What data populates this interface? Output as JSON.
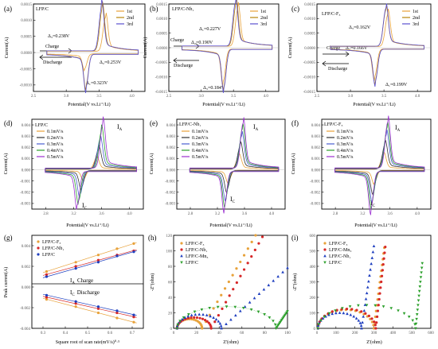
{
  "panels": {
    "a": {
      "letter": "(a)",
      "tag": "LFP/C",
      "legend": [
        "1st",
        "2nd",
        "3rd"
      ],
      "xlabel": "Potential(V vs.Li⁺/Li)",
      "ylabel": "Current(A)",
      "ann": [
        "Δ₃=0.238V",
        "Δ₂=0.253V",
        "Δ₁=0.323V"
      ],
      "charge": "Charge",
      "discharge": "Discharge"
    },
    "b": {
      "letter": "(b)",
      "tag": "LFP/C-Nb₁",
      "legend": [
        "1st",
        "2nd",
        "3rd"
      ],
      "xlabel": "Potential(V vs.Li⁺/Li)",
      "ylabel": "Current(A)",
      "ann": [
        "Δ₁=0.227V",
        "Δ₂=0.190V",
        "Δ₃=0.184V"
      ],
      "charge": "Charge",
      "discharge": "Discharge"
    },
    "c": {
      "letter": "(c)",
      "tag": "LFP/C-F₃",
      "legend": [
        "1st",
        "2nd",
        "3rd"
      ],
      "xlabel": "Potential(V vs.Li⁺/Li)",
      "ylabel": "Current(A)",
      "ann": [
        "Δ₃=0.162V",
        "Δ₂=0.166V",
        "Δ₁=0.199V"
      ],
      "charge": "Charge",
      "discharge": "Discharge"
    },
    "d": {
      "letter": "(d)",
      "tag": "LFP/C",
      "legend": [
        "0.1mV/s",
        "0.2mV/s",
        "0.3mV/s",
        "0.4mV/s",
        "0.5mV/s"
      ],
      "xlabel": "Potential(V vs.Li⁺/Li)",
      "ylabel": "Current(A)",
      "ia": "I",
      "ia_sub": "A",
      "ic": "I",
      "ic_sub": "C"
    },
    "e": {
      "letter": "(e)",
      "tag": "LFP/C-Nb₁",
      "legend": [
        "0.1mV/s",
        "0.2mV/s",
        "0.3mV/s",
        "0.4mV/s",
        "0.5mV/s"
      ],
      "xlabel": "Potential(V vs.Li⁺/Li)",
      "ylabel": "Current(A)",
      "ia": "I",
      "ia_sub": "A",
      "ic": "I",
      "ic_sub": "C"
    },
    "f": {
      "letter": "(f)",
      "tag": "LFP/C-F₃",
      "legend": [
        "0.1mV/s",
        "0.2mV/s",
        "0.3mV/s",
        "0.4mV/s",
        "0.5mV/s"
      ],
      "xlabel": "Potential(V vs.Li⁺/Li)",
      "ylabel": "Current(A)",
      "ia": "I",
      "ia_sub": "A",
      "ic": "I",
      "ic_sub": "C"
    },
    "g": {
      "letter": "(g)",
      "legend": [
        "LFP/C-F₃",
        "LFP/C-Nb₁",
        "LFP/C"
      ],
      "xlabel": "Square root of scan rate(mV/s)⁰·⁵",
      "ylabel": "Peak current(A)",
      "ia_label": "I",
      "ia_sub": "A",
      "charge": "Charge",
      "ic_label": "I",
      "ic_sub": "C",
      "discharge": "Discharge"
    },
    "h": {
      "letter": "(h)",
      "legend": [
        "LFP/C-F₃",
        "LFP/C-Nb₁",
        "LFP/C-Mn₃",
        "LFP/C"
      ],
      "xlabel": "Z'(ohm)",
      "ylabel": "-Z''(ohm)"
    },
    "i": {
      "letter": "(i)",
      "legend": [
        "LFP/C-F₃",
        "LFP/C-Mn₃",
        "LFP/C-Nb₁",
        "LFP/C"
      ],
      "xlabel": "Z'(ohm)",
      "ylabel": "-Z''(ohm)"
    }
  },
  "chart_data": [
    {
      "panel": "a",
      "type": "line",
      "xlim": [
        2.5,
        4.2
      ],
      "ylim": [
        -0.0012,
        0.0015
      ],
      "xticks": [
        "2.5",
        "3.0",
        "3.5",
        "4.0"
      ],
      "yticks": [
        "0.0015",
        "0.0010",
        "0.0005",
        "0.0000",
        "-0.0005",
        "-0.0010"
      ],
      "series": [
        {
          "name": "1st",
          "color": "#e8a23a",
          "anodic_peak": [
            3.6,
            0.00105
          ],
          "cathodic_peak": [
            3.28,
            -0.00045
          ]
        },
        {
          "name": "2nd",
          "color": "#b8860b",
          "anodic_peak": [
            3.55,
            0.0013
          ],
          "cathodic_peak": [
            3.3,
            -0.00095
          ]
        },
        {
          "name": "3rd",
          "color": "#5a4fcf",
          "anodic_peak": [
            3.54,
            0.00135
          ],
          "cathodic_peak": [
            3.3,
            -0.00102
          ]
        }
      ]
    },
    {
      "panel": "b",
      "type": "line",
      "xlim": [
        2.5,
        4.2
      ],
      "ylim": [
        -0.0015,
        0.0015
      ],
      "xticks": [
        "2.5",
        "3.0",
        "3.5",
        "4.0"
      ],
      "yticks": [
        "0.0015",
        "0.0010",
        "0.0005",
        "0.0000",
        "-0.0005",
        "-0.0010",
        "-0.0015"
      ],
      "series": [
        {
          "name": "1st",
          "color": "#e8a23a",
          "anodic_peak": [
            3.57,
            0.0013
          ],
          "cathodic_peak": [
            3.34,
            -0.0011
          ]
        },
        {
          "name": "2nd",
          "color": "#b8860b",
          "anodic_peak": [
            3.54,
            0.00142
          ],
          "cathodic_peak": [
            3.35,
            -0.00125
          ]
        },
        {
          "name": "3rd",
          "color": "#5a4fcf",
          "anodic_peak": [
            3.53,
            0.00148
          ],
          "cathodic_peak": [
            3.35,
            -0.0013
          ]
        }
      ]
    },
    {
      "panel": "c",
      "type": "line",
      "xlim": [
        2.5,
        4.2
      ],
      "ylim": [
        -0.0015,
        0.0015
      ],
      "xticks": [
        "2.5",
        "3.0",
        "3.5",
        "4.0"
      ],
      "yticks": [
        "0.0015",
        "0.0010",
        "0.0005",
        "0.0000",
        "-0.0005",
        "-0.0010",
        "-0.0015"
      ],
      "series": [
        {
          "name": "1st",
          "color": "#e8a23a",
          "anodic_peak": [
            3.56,
            0.0011
          ],
          "cathodic_peak": [
            3.36,
            -0.00095
          ]
        },
        {
          "name": "2nd",
          "color": "#b8860b",
          "anodic_peak": [
            3.53,
            0.00125
          ],
          "cathodic_peak": [
            3.37,
            -0.00105
          ]
        },
        {
          "name": "3rd",
          "color": "#5a4fcf",
          "anodic_peak": [
            3.53,
            0.0013
          ],
          "cathodic_peak": [
            3.37,
            -0.0011
          ]
        }
      ]
    },
    {
      "panel": "d",
      "type": "line",
      "xlim": [
        2.6,
        4.2
      ],
      "ylim": [
        -0.0035,
        0.0045
      ],
      "xticks": [
        "2.8",
        "3.2",
        "3.6",
        "4.0"
      ],
      "yticks": [
        "0.004",
        "0.003",
        "0.002",
        "0.001",
        "0.000",
        "-0.001",
        "-0.002",
        "-0.003"
      ],
      "series": [
        {
          "name": "0.1mV/s",
          "color": "#e8a23a",
          "anodic_peak": [
            3.53,
            0.001
          ],
          "cathodic_peak": [
            3.34,
            -0.0008
          ]
        },
        {
          "name": "0.2mV/s",
          "color": "#333333",
          "anodic_peak": [
            3.56,
            0.0018
          ],
          "cathodic_peak": [
            3.31,
            -0.0015
          ]
        },
        {
          "name": "0.3mV/s",
          "color": "#4a5fd0",
          "anodic_peak": [
            3.58,
            0.0026
          ],
          "cathodic_peak": [
            3.29,
            -0.0021
          ]
        },
        {
          "name": "0.4mV/s",
          "color": "#2ca02c",
          "anodic_peak": [
            3.6,
            0.0033
          ],
          "cathodic_peak": [
            3.27,
            -0.0026
          ]
        },
        {
          "name": "0.5mV/s",
          "color": "#9b30d0",
          "anodic_peak": [
            3.62,
            0.0039
          ],
          "cathodic_peak": [
            3.25,
            -0.003
          ]
        }
      ]
    },
    {
      "panel": "e",
      "type": "line",
      "xlim": [
        2.6,
        4.2
      ],
      "ylim": [
        -0.0035,
        0.0045
      ],
      "xticks": [
        "2.8",
        "3.2",
        "3.6",
        "4.0"
      ],
      "yticks": [
        "0.004",
        "0.003",
        "0.002",
        "0.001",
        "0.000",
        "-0.001",
        "-0.002",
        "-0.003"
      ],
      "series": [
        {
          "name": "0.1mV/s",
          "color": "#e8a23a",
          "anodic_peak": [
            3.52,
            0.0012
          ],
          "cathodic_peak": [
            3.36,
            -0.001
          ]
        },
        {
          "name": "0.2mV/s",
          "color": "#333333",
          "anodic_peak": [
            3.54,
            0.0021
          ],
          "cathodic_peak": [
            3.34,
            -0.0017
          ]
        },
        {
          "name": "0.3mV/s",
          "color": "#4a5fd0",
          "anodic_peak": [
            3.56,
            0.0029
          ],
          "cathodic_peak": [
            3.32,
            -0.0023
          ]
        },
        {
          "name": "0.4mV/s",
          "color": "#2ca02c",
          "anodic_peak": [
            3.57,
            0.0035
          ],
          "cathodic_peak": [
            3.31,
            -0.0028
          ]
        },
        {
          "name": "0.5mV/s",
          "color": "#9b30d0",
          "anodic_peak": [
            3.58,
            0.004
          ],
          "cathodic_peak": [
            3.3,
            -0.0032
          ]
        }
      ]
    },
    {
      "panel": "f",
      "type": "line",
      "xlim": [
        2.6,
        4.2
      ],
      "ylim": [
        -0.0035,
        0.0045
      ],
      "xticks": [
        "2.8",
        "3.2",
        "3.6",
        "4.0"
      ],
      "yticks": [
        "0.004",
        "0.003",
        "0.002",
        "0.001",
        "0.000",
        "-0.001",
        "-0.002",
        "-0.003"
      ],
      "series": [
        {
          "name": "0.1mV/s",
          "color": "#e8a23a",
          "anodic_peak": [
            3.51,
            0.0013
          ],
          "cathodic_peak": [
            3.37,
            -0.0011
          ]
        },
        {
          "name": "0.2mV/s",
          "color": "#333333",
          "anodic_peak": [
            3.53,
            0.0022
          ],
          "cathodic_peak": [
            3.35,
            -0.0018
          ]
        },
        {
          "name": "0.3mV/s",
          "color": "#4a5fd0",
          "anodic_peak": [
            3.55,
            0.003
          ],
          "cathodic_peak": [
            3.34,
            -0.0024
          ]
        },
        {
          "name": "0.4mV/s",
          "color": "#2ca02c",
          "anodic_peak": [
            3.56,
            0.0036
          ],
          "cathodic_peak": [
            3.33,
            -0.0029
          ]
        },
        {
          "name": "0.5mV/s",
          "color": "#9b30d0",
          "anodic_peak": [
            3.57,
            0.0041
          ],
          "cathodic_peak": [
            3.32,
            -0.0033
          ]
        }
      ]
    },
    {
      "panel": "g",
      "type": "scatter",
      "xlim": [
        0.25,
        0.75
      ],
      "ylim": [
        -0.004,
        0.005
      ],
      "xticks": [
        "0.3",
        "0.4",
        "0.5",
        "0.6",
        "0.7"
      ],
      "yticks": [
        "0.004",
        "0.002",
        "0.000",
        "-0.002",
        "-0.004"
      ],
      "series": [
        {
          "name": "LFP/C-F₃",
          "color": "#e8a23a",
          "marker": "circle",
          "x": [
            0.316,
            0.447,
            0.548,
            0.632,
            0.707
          ],
          "y_charge": [
            0.0015,
            0.0024,
            0.0031,
            0.0037,
            0.0042
          ],
          "y_discharge": [
            -0.0012,
            -0.0019,
            -0.0025,
            -0.003,
            -0.0034
          ]
        },
        {
          "name": "LFP/C-Nb₁",
          "color": "#d62728",
          "marker": "circle",
          "x": [
            0.316,
            0.447,
            0.548,
            0.632,
            0.707
          ],
          "y_charge": [
            0.0012,
            0.002,
            0.0026,
            0.0031,
            0.0035
          ],
          "y_discharge": [
            -0.001,
            -0.0016,
            -0.0021,
            -0.0025,
            -0.0029
          ]
        },
        {
          "name": "LFP/C",
          "color": "#1f3fbf",
          "marker": "circle",
          "x": [
            0.316,
            0.447,
            0.548,
            0.632,
            0.707
          ],
          "y_charge": [
            0.001,
            0.0018,
            0.0024,
            0.003,
            0.0034
          ],
          "y_discharge": [
            -0.0008,
            -0.0014,
            -0.0019,
            -0.0023,
            -0.0027
          ]
        }
      ]
    },
    {
      "panel": "h",
      "type": "scatter",
      "xlim": [
        0,
        100
      ],
      "ylim": [
        0,
        120
      ],
      "xticks": [
        "0",
        "20",
        "40",
        "60",
        "80",
        "100"
      ],
      "yticks": [
        "0",
        "20",
        "40",
        "60",
        "80",
        "100",
        "120"
      ],
      "series": [
        {
          "name": "LFP/C-F₃",
          "color": "#e8a23a",
          "marker": "circle",
          "semicircle": [
            3,
            25,
            12
          ],
          "tail_end": [
            72,
            120
          ]
        },
        {
          "name": "LFP/C-Nb₁",
          "color": "#d62728",
          "marker": "circle",
          "semicircle": [
            3,
            33,
            14
          ],
          "tail_end": [
            78,
            118
          ]
        },
        {
          "name": "LFP/C-Mn₃",
          "color": "#1f3fbf",
          "marker": "triangle",
          "semicircle": [
            3,
            42,
            18
          ],
          "tail_end": [
            100,
            78
          ]
        },
        {
          "name": "LFP/C",
          "color": "#2ca02c",
          "marker": "triangle-down",
          "semicircle": [
            3,
            90,
            28
          ],
          "tail_end": [
            100,
            22
          ]
        }
      ]
    },
    {
      "panel": "i",
      "type": "scatter",
      "xlim": [
        0,
        600
      ],
      "ylim": [
        0,
        600
      ],
      "xticks": [
        "0",
        "100",
        "200",
        "300",
        "400",
        "500",
        "600"
      ],
      "yticks": [
        "0",
        "100",
        "200",
        "300",
        "400",
        "500",
        "600"
      ],
      "series": [
        {
          "name": "LFP/C-F₃",
          "color": "#e8a23a",
          "marker": "circle",
          "semicircle": [
            5,
            300,
            120
          ],
          "tail_end": [
            355,
            520
          ]
        },
        {
          "name": "LFP/C-Mn₃",
          "color": "#d62728",
          "marker": "circle",
          "semicircle": [
            5,
            310,
            125
          ],
          "tail_end": [
            360,
            525
          ]
        },
        {
          "name": "LFP/C-Nb₁",
          "color": "#1f3fbf",
          "marker": "triangle",
          "semicircle": [
            5,
            235,
            100
          ],
          "tail_end": [
            300,
            530
          ]
        },
        {
          "name": "LFP/C",
          "color": "#2ca02c",
          "marker": "triangle-down",
          "semicircle": [
            5,
            520,
            150
          ],
          "tail_end": [
            555,
            420
          ]
        }
      ]
    }
  ]
}
